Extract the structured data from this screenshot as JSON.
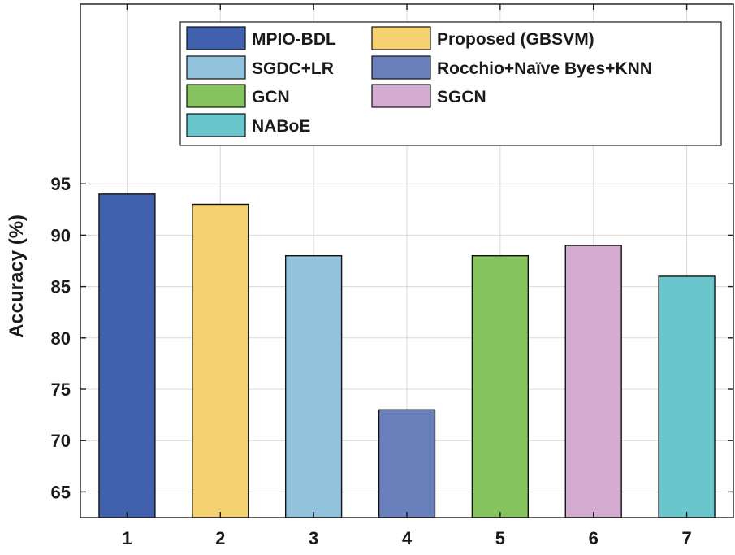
{
  "chart_data": {
    "type": "bar",
    "categories": [
      "1",
      "2",
      "3",
      "4",
      "5",
      "6",
      "7"
    ],
    "series": [
      {
        "name": "MPIO-BDL",
        "category": "1",
        "value": 94,
        "color": "#4161AE"
      },
      {
        "name": "Proposed (GBSVM)",
        "category": "2",
        "value": 93,
        "color": "#F5D172"
      },
      {
        "name": "SGDC+LR",
        "category": "3",
        "value": 88,
        "color": "#92C3DD"
      },
      {
        "name": "Rocchio+Naïve Byes+KNN",
        "category": "4",
        "value": 73,
        "color": "#6A80BD"
      },
      {
        "name": "GCN",
        "category": "5",
        "value": 88,
        "color": "#86C35F"
      },
      {
        "name": "SGCN",
        "category": "6",
        "value": 89,
        "color": "#D4ACD2"
      },
      {
        "name": "NABoE",
        "category": "7",
        "value": 86,
        "color": "#68C6CC"
      }
    ],
    "values": [
      94,
      93,
      88,
      73,
      88,
      89,
      86
    ],
    "title": "",
    "xlabel": "",
    "ylabel": "Accuracy (%)",
    "ylim": [
      62.5,
      112.5
    ],
    "yticks": [
      65,
      70,
      75,
      80,
      85,
      90,
      95
    ],
    "xlim": [
      0.5,
      7.5
    ],
    "grid": true,
    "legend_location": "top-right",
    "legend_columns": 2
  }
}
